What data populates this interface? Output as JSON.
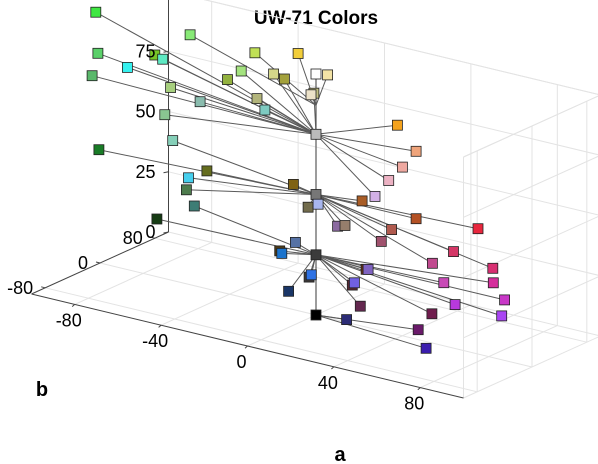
{
  "chart_data": {
    "type": "scatter3d",
    "title": "UW-71 Colors",
    "xlabel": "a",
    "ylabel": "b",
    "zlabel": "",
    "xlim": [
      -100,
      100
    ],
    "ylim": [
      -100,
      100
    ],
    "zlim": [
      0,
      100
    ],
    "xticks": [
      -80,
      -40,
      0,
      40,
      80
    ],
    "yticks": [
      -80,
      0,
      80
    ],
    "zticks": [
      0,
      25,
      50,
      75,
      100
    ],
    "grid": true,
    "lines_to_center": true,
    "hub_levels": [
      0,
      25,
      50,
      75,
      87
    ],
    "points": [
      {
        "L": 100,
        "a": 0,
        "b": 0,
        "color": "#ffffff"
      },
      {
        "L": 0,
        "a": 0,
        "b": 0,
        "color": "#000000"
      },
      {
        "L": 25,
        "a": 0,
        "b": 0,
        "color": "#3b3b3b"
      },
      {
        "L": 50,
        "a": 0,
        "b": 0,
        "color": "#777777"
      },
      {
        "L": 75,
        "a": 0,
        "b": 0,
        "color": "#bbbbbb"
      },
      {
        "L": 87,
        "a": -40,
        "b": 100,
        "color": "#f2ce3a"
      },
      {
        "L": 85,
        "a": -20,
        "b": 80,
        "color": "#f3e3a6"
      },
      {
        "L": 83,
        "a": -15,
        "b": 40,
        "color": "#ece2c9"
      },
      {
        "L": 79,
        "a": 25,
        "b": 40,
        "color": "#f4a21c"
      },
      {
        "L": 74,
        "a": 40,
        "b": 20,
        "color": "#efa47b"
      },
      {
        "L": 70,
        "a": 40,
        "b": 0,
        "color": "#eea8a0"
      },
      {
        "L": 67,
        "a": 40,
        "b": -20,
        "color": "#ecb2c3"
      },
      {
        "L": 63,
        "a": 40,
        "b": -40,
        "color": "#d2b0e6"
      },
      {
        "L": 58,
        "a": 20,
        "b": -60,
        "color": "#a8b6ee"
      },
      {
        "L": 56,
        "a": -40,
        "b": -60,
        "color": "#46cfed"
      },
      {
        "L": 62,
        "a": -60,
        "b": -20,
        "color": "#85cfb8"
      },
      {
        "L": 68,
        "a": -70,
        "b": 0,
        "color": "#89c691"
      },
      {
        "L": 72,
        "a": -80,
        "b": 40,
        "color": "#a7cf7e"
      },
      {
        "L": 76,
        "a": -40,
        "b": 40,
        "color": "#b2b47b"
      },
      {
        "L": 73,
        "a": -60,
        "b": 20,
        "color": "#8abcae"
      },
      {
        "L": 76,
        "a": -100,
        "b": 40,
        "color": "#35f1ef"
      },
      {
        "L": 79,
        "a": -90,
        "b": 60,
        "color": "#5ee9c3"
      },
      {
        "L": 84,
        "a": -90,
        "b": 100,
        "color": "#88ea77"
      },
      {
        "L": 83,
        "a": -60,
        "b": 100,
        "color": "#c0e055"
      },
      {
        "L": 80,
        "a": -45,
        "b": 80,
        "color": "#d4d78a"
      },
      {
        "L": 78,
        "a": -60,
        "b": 80,
        "color": "#a4e37f"
      },
      {
        "L": 80,
        "a": -140,
        "b": 120,
        "color": "#3fe742"
      },
      {
        "L": 75,
        "a": -120,
        "b": 60,
        "color": "#5bd06a"
      },
      {
        "L": 73,
        "a": -110,
        "b": 20,
        "color": "#5ab86b"
      },
      {
        "L": 76,
        "a": -100,
        "b": 80,
        "color": "#77c526"
      },
      {
        "L": 77,
        "a": -60,
        "b": 60,
        "color": "#93b23f"
      },
      {
        "L": 79,
        "a": -40,
        "b": 80,
        "color": "#a3a13c"
      },
      {
        "L": 80,
        "a": -20,
        "b": 60,
        "color": "#c2c083"
      },
      {
        "L": 76,
        "a": -30,
        "b": 20,
        "color": "#7ecbc1"
      },
      {
        "L": 41,
        "a": -110,
        "b": 30,
        "color": "#197c27"
      },
      {
        "L": 43,
        "a": -60,
        "b": 30,
        "color": "#656d1f"
      },
      {
        "L": 39,
        "a": -60,
        "b": 0,
        "color": "#4d7b4c"
      },
      {
        "L": 37,
        "a": -50,
        "b": -20,
        "color": "#3d7d75"
      },
      {
        "L": 46,
        "a": -20,
        "b": 30,
        "color": "#7f6215"
      },
      {
        "L": 40,
        "a": -10,
        "b": 20,
        "color": "#726c4c"
      },
      {
        "L": 48,
        "a": 15,
        "b": 20,
        "color": "#a95d26"
      },
      {
        "L": 41,
        "a": 15,
        "b": -5,
        "color": "#967e6c"
      },
      {
        "L": 46,
        "a": 40,
        "b": 20,
        "color": "#b45124"
      },
      {
        "L": 43,
        "a": 35,
        "b": 0,
        "color": "#b05a4e"
      },
      {
        "L": 40,
        "a": 35,
        "b": -15,
        "color": "#a0526e"
      },
      {
        "L": 52,
        "a": 75,
        "b": 0,
        "color": "#e8263d"
      },
      {
        "L": 44,
        "a": 70,
        "b": -20,
        "color": "#d43766"
      },
      {
        "L": 40,
        "a": 65,
        "b": -35,
        "color": "#c04a8f"
      },
      {
        "L": 36,
        "a": 75,
        "b": -50,
        "color": "#c849b6"
      },
      {
        "L": 31,
        "a": 85,
        "b": -65,
        "color": "#b839dd"
      },
      {
        "L": 30,
        "a": 105,
        "b": -60,
        "color": "#a945f3"
      },
      {
        "L": 33,
        "a": 100,
        "b": -40,
        "color": "#c837c7"
      },
      {
        "L": 36,
        "a": 90,
        "b": -25,
        "color": "#d52e9c"
      },
      {
        "L": 39,
        "a": 85,
        "b": -10,
        "color": "#d83072"
      },
      {
        "L": 34,
        "a": 40,
        "b": -50,
        "color": "#7f63c0"
      },
      {
        "L": 31,
        "a": 40,
        "b": -70,
        "color": "#7160e2"
      },
      {
        "L": 30,
        "a": 20,
        "b": -70,
        "color": "#2f72e4"
      },
      {
        "L": 32,
        "a": 0,
        "b": -50,
        "color": "#1b73cc"
      },
      {
        "L": 34,
        "a": 0,
        "b": -30,
        "color": "#5672a5"
      },
      {
        "L": 39,
        "a": 10,
        "b": 0,
        "color": "#8b6aa0"
      },
      {
        "L": 20,
        "a": -80,
        "b": 20,
        "color": "#163c14"
      },
      {
        "L": 21,
        "a": -20,
        "b": 10,
        "color": "#4d3a16"
      },
      {
        "L": 22,
        "a": 20,
        "b": 10,
        "color": "#6b3116"
      },
      {
        "L": 18,
        "a": 20,
        "b": -10,
        "color": "#592932"
      },
      {
        "L": 14,
        "a": 30,
        "b": -30,
        "color": "#64284f"
      },
      {
        "L": 11,
        "a": 30,
        "b": -50,
        "color": "#2c2c76"
      },
      {
        "L": 15,
        "a": 0,
        "b": -40,
        "color": "#1a3667"
      },
      {
        "L": 17,
        "a": 0,
        "b": -10,
        "color": "#3d3a3a"
      },
      {
        "L": 16,
        "a": 60,
        "b": -20,
        "color": "#701d4e"
      },
      {
        "L": 12,
        "a": 60,
        "b": -40,
        "color": "#6a1a6a"
      },
      {
        "L": 9,
        "a": 70,
        "b": -60,
        "color": "#3a1cae"
      }
    ]
  }
}
